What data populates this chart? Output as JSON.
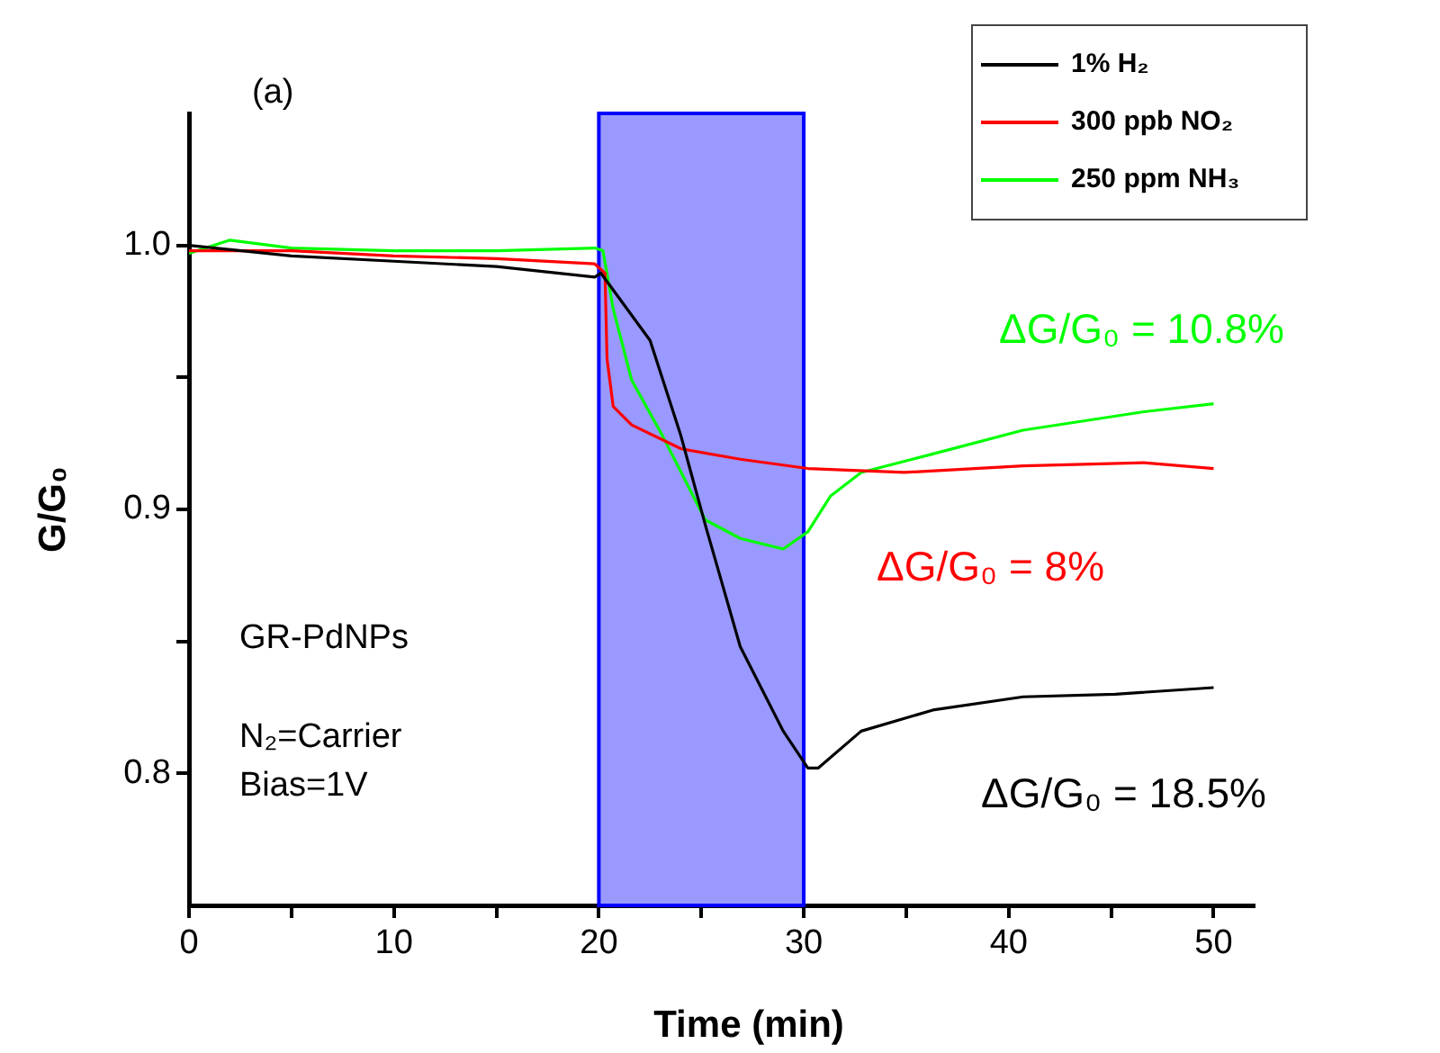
{
  "chart_data": {
    "type": "line",
    "xlabel": "Time (min)",
    "ylabel": "G/G₀",
    "xlim": [
      0,
      52
    ],
    "ylim": [
      0.75,
      1.05
    ],
    "xticks": [
      0,
      {
        "value": 5,
        "label": null
      },
      10,
      {
        "value": 15,
        "label": null
      },
      20,
      {
        "value": 25,
        "label": null
      },
      30,
      {
        "value": 35,
        "label": null
      },
      40,
      {
        "value": 45,
        "label": null
      },
      50
    ],
    "yticks": [
      0.8,
      {
        "value": 0.85,
        "label": null
      },
      0.9,
      {
        "value": 0.95,
        "label": null
      },
      {
        "value": 1.0,
        "label": "1.0"
      }
    ],
    "grid": false,
    "legend": "top right",
    "marker": "none",
    "line_style": "solid",
    "bands": [
      {
        "axis": "x",
        "from": 20,
        "to": 30,
        "color": "#0000ff"
      }
    ],
    "annotations": [
      "(a)",
      "GR-PdNPs",
      "N₂=Carrier",
      "Bias=1V",
      "ΔG/G₀ = 10.8%",
      "ΔG/G₀ = 8%",
      "ΔG/G₀ = 18.5%"
    ],
    "series": [
      {
        "name": "1% H₂",
        "color": "#000000",
        "x": [
          0,
          5,
          10,
          15,
          19.8,
          20.1,
          22.5,
          24,
          25.2,
          26.9,
          29,
          30.2,
          30.7,
          32.8,
          36.3,
          40.7,
          45.2,
          50
        ],
        "values": [
          1.0,
          0.996,
          0.994,
          0.992,
          0.988,
          0.9895,
          0.964,
          0.928,
          0.894,
          0.848,
          0.816,
          0.802,
          0.802,
          0.816,
          0.824,
          0.829,
          0.83,
          0.8325
        ]
      },
      {
        "name": "300 ppb NO₂",
        "color": "#ff0000",
        "x": [
          0,
          5,
          10,
          15,
          19.8,
          20.3,
          20.4,
          20.7,
          21.6,
          24,
          26.9,
          30.2,
          34.9,
          40.7,
          46.6,
          50
        ],
        "values": [
          0.998,
          0.998,
          0.996,
          0.995,
          0.993,
          0.9895,
          0.957,
          0.939,
          0.932,
          0.923,
          0.919,
          0.9155,
          0.914,
          0.9165,
          0.9177,
          0.9155
        ]
      },
      {
        "name": "250 ppm NH₃",
        "color": "#00ff00",
        "x": [
          0,
          2,
          5,
          10,
          15,
          19.8,
          20.2,
          20.7,
          21.6,
          23.1,
          25.2,
          26.9,
          29,
          30.2,
          31.3,
          32.8,
          36.3,
          40.7,
          46.6,
          50
        ],
        "values": [
          0.997,
          1.002,
          0.999,
          0.998,
          0.998,
          0.999,
          0.998,
          0.976,
          0.949,
          0.928,
          0.896,
          0.889,
          0.885,
          0.8915,
          0.905,
          0.914,
          0.921,
          0.93,
          0.937,
          0.94
        ]
      }
    ]
  }
}
